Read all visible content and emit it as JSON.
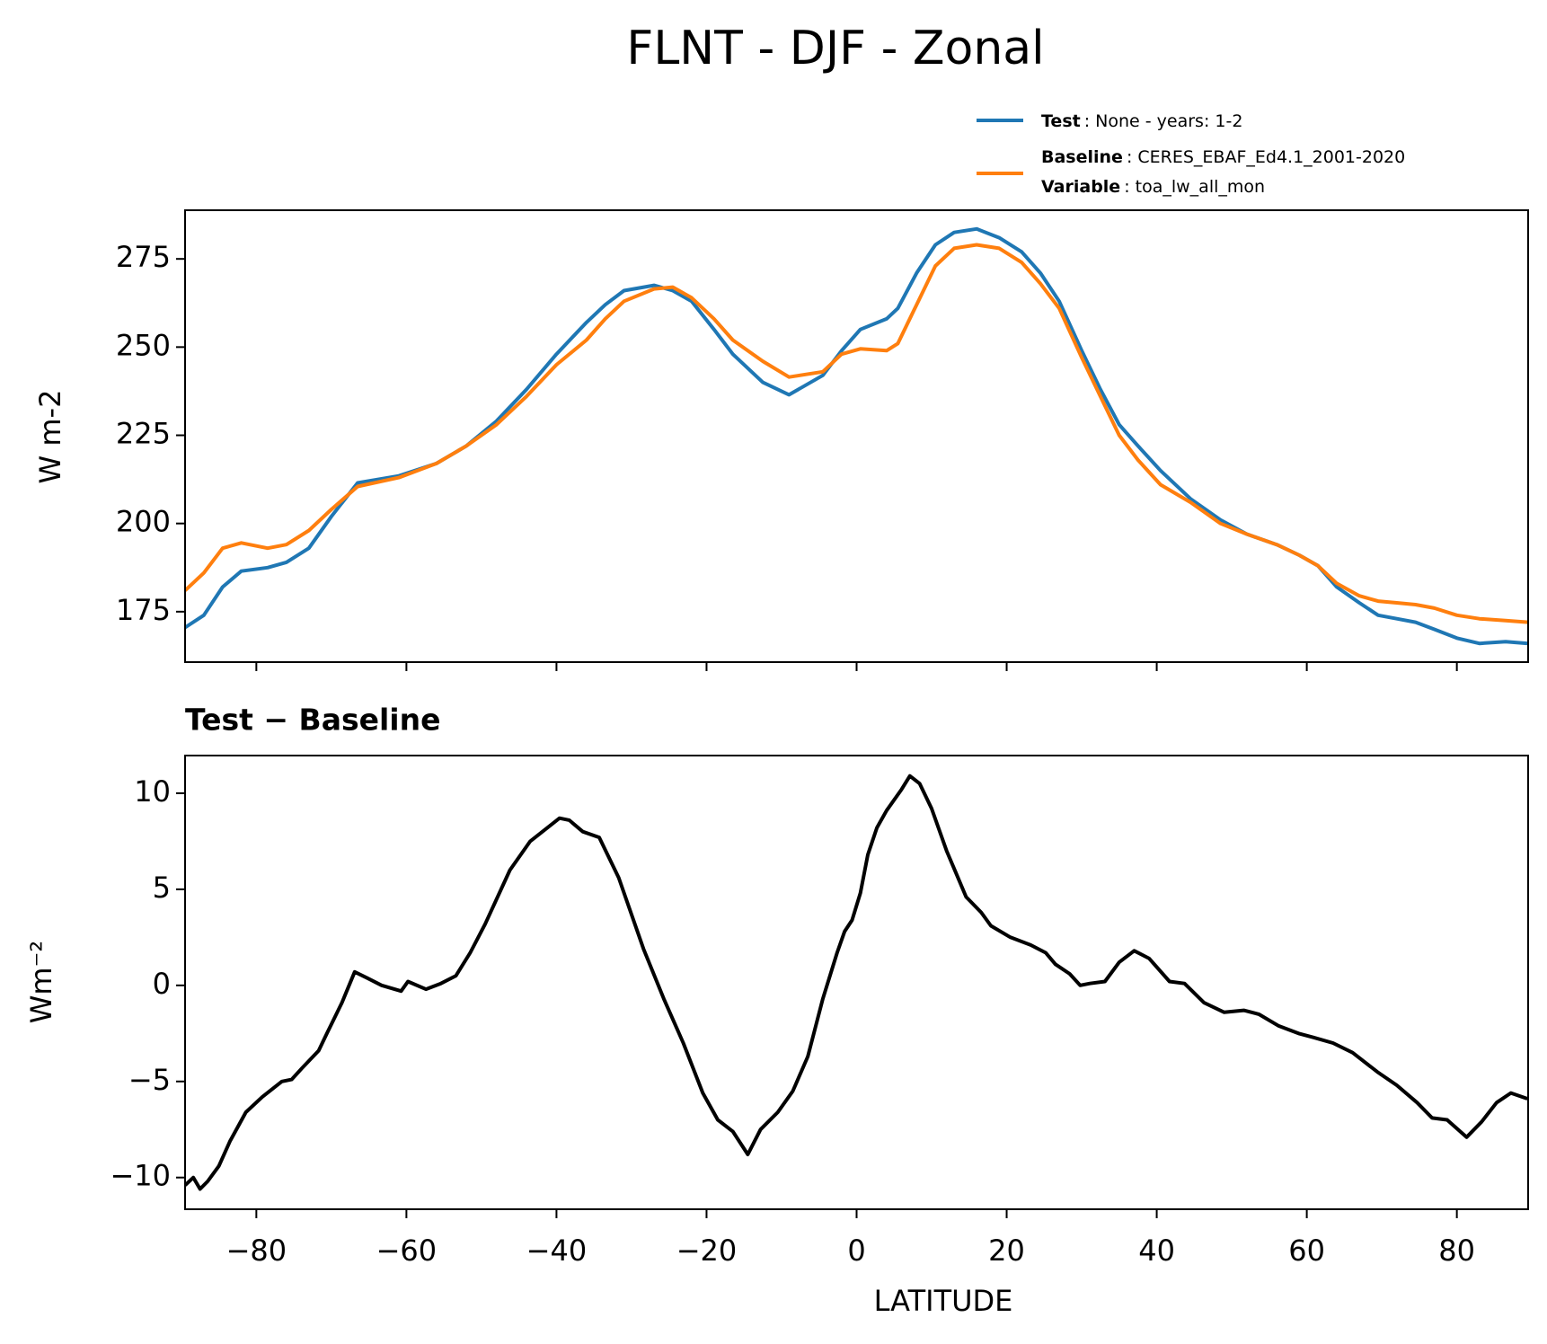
{
  "chart_data": [
    {
      "type": "line",
      "title": "FLNT - DJF - Zonal",
      "ylabel": "W m-2",
      "x": [
        -89.5,
        -87,
        -84.5,
        -82,
        -78.5,
        -76,
        -73,
        -70,
        -66.5,
        -61,
        -56,
        -52,
        -48,
        -44,
        -40,
        -36,
        -33.5,
        -31,
        -27,
        -24.5,
        -22,
        -19,
        -16.5,
        -12.5,
        -9,
        -4.5,
        -2,
        0.5,
        4,
        5.5,
        8,
        10.5,
        13,
        16,
        19,
        22,
        24.5,
        27,
        30,
        32.5,
        35,
        37.5,
        40.5,
        44.5,
        48.5,
        52,
        56,
        59,
        61.5,
        64,
        67,
        69.5,
        72,
        74.5,
        77,
        80,
        83,
        86.5,
        89.5
      ],
      "series": [
        {
          "name": "Test",
          "label": ": None - years: 1-2",
          "color": "#1f77b4",
          "values": [
            170.5,
            174,
            182,
            186.5,
            187.5,
            189,
            193,
            202,
            211.5,
            213.5,
            217,
            222,
            229,
            238,
            248,
            257,
            262,
            266,
            267.5,
            266,
            263,
            255,
            248,
            240,
            236.5,
            242,
            249,
            255,
            258,
            261,
            271,
            279,
            282.5,
            283.5,
            281,
            277,
            271,
            263,
            249,
            238,
            228,
            222,
            215,
            207,
            201,
            197,
            194,
            191,
            188,
            182,
            177.5,
            174,
            173,
            172,
            170,
            167.5,
            166,
            166.5,
            166
          ]
        },
        {
          "name": "Baseline",
          "label": ": CERES_EBAF_Ed4.1_2001-2020",
          "color": "#ff7f0e",
          "values": [
            181,
            186,
            193,
            194.5,
            193,
            194,
            198,
            204,
            210.5,
            213,
            217,
            222,
            228,
            236,
            245,
            252,
            258,
            263,
            266.5,
            267,
            264,
            258,
            252,
            246,
            241.5,
            243,
            248,
            249.5,
            249,
            251,
            262,
            273,
            278,
            279,
            278,
            274,
            268,
            261,
            247,
            236,
            225,
            218,
            211,
            206,
            200,
            197,
            194,
            191,
            188,
            183,
            179.5,
            178,
            177.5,
            177,
            176,
            174,
            173,
            172.5,
            172
          ]
        }
      ],
      "legend_note": {
        "name": "Variable",
        "label": ": toa_lw_all_mon"
      },
      "xlim": [
        -89.5,
        89.5
      ],
      "ylim": [
        160.7,
        288.8
      ],
      "xticks": [
        -80,
        -60,
        -40,
        -20,
        0,
        20,
        40,
        60,
        80
      ],
      "yticks": [
        175,
        200,
        225,
        250,
        275
      ]
    },
    {
      "type": "line",
      "title": "Test − Baseline",
      "ylabel": "Wm⁻²",
      "xlabel": "LATITUDE",
      "x": [
        -89.5,
        -88.4,
        -87.5,
        -86.5,
        -85,
        -83.5,
        -81.4,
        -79.2,
        -76.6,
        -75.3,
        -73.9,
        -71.7,
        -70.6,
        -68.6,
        -66.9,
        -65.3,
        -63.3,
        -60.7,
        -59.8,
        -57.4,
        -55.4,
        -53.4,
        -51.5,
        -49.5,
        -46.2,
        -43.5,
        -40.9,
        -39.6,
        -38.3,
        -36.5,
        -34.3,
        -31.7,
        -28.4,
        -25.7,
        -23.1,
        -20.5,
        -18.5,
        -16.5,
        -14.5,
        -12.8,
        -10.5,
        -8.5,
        -6.5,
        -4.5,
        -2.6,
        -1.6,
        -0.6,
        0.5,
        1.5,
        2.7,
        4,
        6,
        7.1,
        8.4,
        10,
        12,
        13.3,
        14.6,
        16.6,
        17.9,
        20.5,
        23.2,
        25.2,
        26.5,
        28.4,
        29.8,
        31.1,
        33.1,
        35,
        37,
        39,
        41.7,
        43.7,
        46.3,
        49,
        51.6,
        53.6,
        56.2,
        58.9,
        60.8,
        63.5,
        66.1,
        69.4,
        72,
        74.7,
        76.7,
        78.7,
        81.3,
        83.3,
        85.3,
        87.2,
        89.4
      ],
      "series": [
        {
          "color": "#000000",
          "values": [
            -10.4,
            -10,
            -10.6,
            -10.2,
            -9.4,
            -8.1,
            -6.6,
            -5.8,
            -5,
            -4.9,
            -4.3,
            -3.4,
            -2.5,
            -0.9,
            0.7,
            0.4,
            0,
            -0.3,
            0.2,
            -0.2,
            0.1,
            0.5,
            1.7,
            3.2,
            6,
            7.5,
            8.3,
            8.7,
            8.6,
            8,
            7.7,
            5.6,
            1.9,
            -0.7,
            -3,
            -5.6,
            -7,
            -7.6,
            -8.8,
            -7.5,
            -6.6,
            -5.5,
            -3.7,
            -0.7,
            1.7,
            2.8,
            3.4,
            4.8,
            6.8,
            8.2,
            9.1,
            10.2,
            10.9,
            10.5,
            9.2,
            7,
            5.8,
            4.6,
            3.8,
            3.1,
            2.5,
            2.1,
            1.7,
            1.1,
            0.6,
            0,
            0.1,
            0.2,
            1.2,
            1.8,
            1.4,
            0.2,
            0.1,
            -0.9,
            -1.4,
            -1.3,
            -1.5,
            -2.1,
            -2.5,
            -2.7,
            -3,
            -3.5,
            -4.5,
            -5.2,
            -6.1,
            -6.9,
            -7,
            -7.9,
            -7.1,
            -6.1,
            -5.6,
            -5.9
          ]
        }
      ],
      "xlim": [
        -89.5,
        89.5
      ],
      "ylim": [
        -11.65,
        11.96
      ],
      "xticks": [
        {
          "value": -80,
          "label": "−80"
        },
        {
          "value": -60,
          "label": "−60"
        },
        {
          "value": -40,
          "label": "−40"
        },
        {
          "value": -20,
          "label": "−20"
        },
        0,
        20,
        40,
        60,
        80
      ],
      "yticks": [
        {
          "value": -10,
          "label": "−10"
        },
        {
          "value": -5,
          "label": "−5"
        },
        0,
        5,
        10
      ]
    }
  ]
}
